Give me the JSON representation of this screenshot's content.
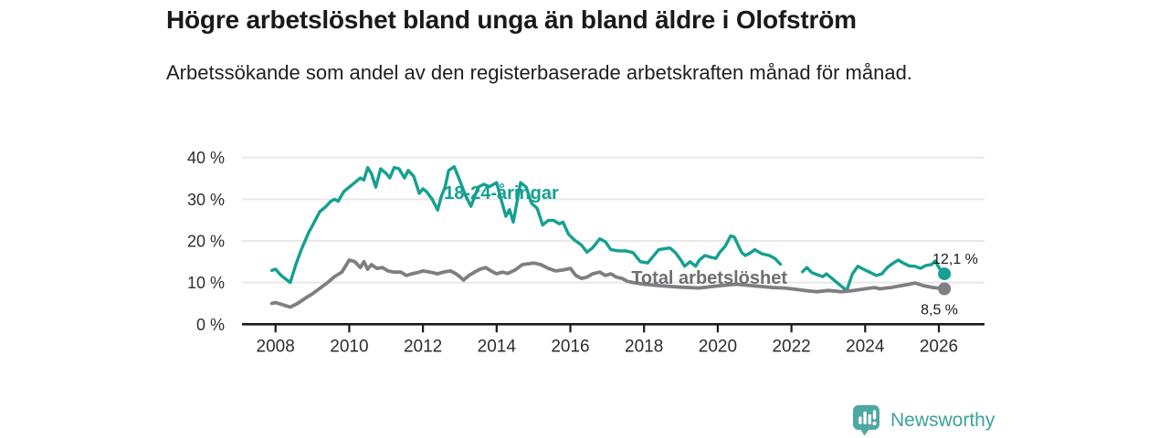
{
  "header": {
    "title": "Högre arbetslöshet bland unga än bland äldre i Olofström",
    "subtitle": "Arbetssökande som andel av den registerbaserade arbetskraften månad för månad."
  },
  "chart_data": {
    "type": "line",
    "title": "Högre arbetslöshet bland unga än bland äldre i Olofström",
    "xlabel": "",
    "ylabel": "",
    "xlim": [
      2007.8,
      2027.2
    ],
    "ylim": [
      0,
      40
    ],
    "grid": true,
    "legend_position": "inline-labels",
    "x_ticks": [
      {
        "value": 2008,
        "label": "2008"
      },
      {
        "value": 2010,
        "label": "2010"
      },
      {
        "value": 2012,
        "label": "2012"
      },
      {
        "value": 2014,
        "label": "2014"
      },
      {
        "value": 2016,
        "label": "2016"
      },
      {
        "value": 2018,
        "label": "2018"
      },
      {
        "value": 2020,
        "label": "2020"
      },
      {
        "value": 2022,
        "label": "2022"
      },
      {
        "value": 2024,
        "label": "2024"
      },
      {
        "value": 2026,
        "label": "2026"
      }
    ],
    "y_ticks": [
      {
        "value": 0,
        "label": "0 %"
      },
      {
        "value": 10,
        "label": "10 %"
      },
      {
        "value": 20,
        "label": "20 %"
      },
      {
        "value": 30,
        "label": "30 %"
      },
      {
        "value": 40,
        "label": "40 %"
      }
    ],
    "series": [
      {
        "id": "youth",
        "name": "18-24-åringar",
        "color": "#14a090",
        "label_color": "#14a090",
        "line_width": 3.4,
        "end_label": "12,1 %",
        "end_value": 12.1,
        "label_anchor": {
          "year": 2014.13,
          "value": 30.1
        },
        "points": [
          [
            2007.9,
            12.9
          ],
          [
            2008.0,
            13.2
          ],
          [
            2008.15,
            11.7
          ],
          [
            2008.4,
            10.0
          ],
          [
            2008.55,
            14.3
          ],
          [
            2008.7,
            17.9
          ],
          [
            2008.9,
            22.0
          ],
          [
            2009.05,
            24.5
          ],
          [
            2009.2,
            27.0
          ],
          [
            2009.35,
            28.1
          ],
          [
            2009.5,
            29.5
          ],
          [
            2009.6,
            30.0
          ],
          [
            2009.7,
            29.5
          ],
          [
            2009.85,
            31.8
          ],
          [
            2010.0,
            32.9
          ],
          [
            2010.15,
            34.0
          ],
          [
            2010.3,
            35.1
          ],
          [
            2010.4,
            34.6
          ],
          [
            2010.5,
            37.6
          ],
          [
            2010.6,
            36.2
          ],
          [
            2010.72,
            32.9
          ],
          [
            2010.85,
            37.3
          ],
          [
            2011.0,
            36.2
          ],
          [
            2011.1,
            35.1
          ],
          [
            2011.22,
            37.6
          ],
          [
            2011.35,
            37.3
          ],
          [
            2011.5,
            35.1
          ],
          [
            2011.6,
            36.9
          ],
          [
            2011.75,
            35.5
          ],
          [
            2011.9,
            31.4
          ],
          [
            2012.0,
            32.5
          ],
          [
            2012.1,
            31.8
          ],
          [
            2012.25,
            30.0
          ],
          [
            2012.4,
            27.4
          ],
          [
            2012.5,
            30.7
          ],
          [
            2012.6,
            32.9
          ],
          [
            2012.7,
            36.9
          ],
          [
            2012.85,
            37.8
          ],
          [
            2013.0,
            34.5
          ],
          [
            2013.15,
            31.0
          ],
          [
            2013.3,
            28.3
          ],
          [
            2013.5,
            32.9
          ],
          [
            2013.65,
            33.6
          ],
          [
            2013.8,
            33.0
          ],
          [
            2014.0,
            34.0
          ],
          [
            2014.12,
            30.0
          ],
          [
            2014.25,
            25.9
          ],
          [
            2014.35,
            27.5
          ],
          [
            2014.45,
            24.5
          ],
          [
            2014.65,
            34.0
          ],
          [
            2014.8,
            32.9
          ],
          [
            2014.95,
            29.0
          ],
          [
            2015.1,
            27.8
          ],
          [
            2015.25,
            23.8
          ],
          [
            2015.4,
            24.9
          ],
          [
            2015.55,
            24.9
          ],
          [
            2015.7,
            24.1
          ],
          [
            2015.8,
            24.5
          ],
          [
            2015.95,
            21.6
          ],
          [
            2016.1,
            20.3
          ],
          [
            2016.3,
            19.0
          ],
          [
            2016.45,
            17.3
          ],
          [
            2016.6,
            18.3
          ],
          [
            2016.8,
            20.5
          ],
          [
            2016.95,
            19.8
          ],
          [
            2017.1,
            17.9
          ],
          [
            2017.3,
            17.6
          ],
          [
            2017.5,
            17.6
          ],
          [
            2017.7,
            17.2
          ],
          [
            2017.9,
            15.0
          ],
          [
            2018.1,
            14.7
          ],
          [
            2018.4,
            17.9
          ],
          [
            2018.7,
            18.3
          ],
          [
            2018.85,
            17.2
          ],
          [
            2019.0,
            15.4
          ],
          [
            2019.1,
            13.9
          ],
          [
            2019.25,
            15.0
          ],
          [
            2019.4,
            13.9
          ],
          [
            2019.5,
            15.4
          ],
          [
            2019.65,
            16.5
          ],
          [
            2019.8,
            16.1
          ],
          [
            2019.95,
            15.8
          ],
          [
            2020.05,
            17.2
          ],
          [
            2020.2,
            18.7
          ],
          [
            2020.35,
            21.2
          ],
          [
            2020.45,
            20.9
          ],
          [
            2020.55,
            19.0
          ],
          [
            2020.65,
            17.2
          ],
          [
            2020.75,
            16.5
          ],
          [
            2020.9,
            17.2
          ],
          [
            2021.0,
            17.9
          ],
          [
            2021.2,
            16.9
          ],
          [
            2021.4,
            16.5
          ],
          [
            2021.55,
            15.8
          ],
          [
            2021.7,
            14.4
          ],
          [
            2022.0,
            null
          ],
          [
            2022.3,
            12.6
          ],
          [
            2022.42,
            13.6
          ],
          [
            2022.55,
            12.4
          ],
          [
            2022.7,
            11.9
          ],
          [
            2022.85,
            11.4
          ],
          [
            2022.95,
            12.1
          ],
          [
            2023.1,
            11.0
          ],
          [
            2023.3,
            9.5
          ],
          [
            2023.5,
            8.1
          ],
          [
            2023.65,
            12.0
          ],
          [
            2023.8,
            13.9
          ],
          [
            2023.95,
            13.2
          ],
          [
            2024.1,
            12.6
          ],
          [
            2024.3,
            11.7
          ],
          [
            2024.45,
            12.1
          ],
          [
            2024.6,
            13.6
          ],
          [
            2024.75,
            14.6
          ],
          [
            2024.9,
            15.4
          ],
          [
            2025.05,
            14.6
          ],
          [
            2025.2,
            14.0
          ],
          [
            2025.35,
            13.9
          ],
          [
            2025.5,
            13.4
          ],
          [
            2025.65,
            14.1
          ],
          [
            2025.8,
            14.3
          ],
          [
            2025.9,
            15.2
          ],
          [
            2026.0,
            13.6
          ],
          [
            2026.15,
            12.1
          ]
        ]
      },
      {
        "id": "total",
        "name": "Total arbetslöshet",
        "color": "#7e7e83",
        "label_color": "#6e6e73",
        "line_width": 3.8,
        "end_label": "8,5 %",
        "end_value": 8.5,
        "label_anchor": {
          "year": 2019.77,
          "value": 9.7
        },
        "points": [
          [
            2007.9,
            5.0
          ],
          [
            2008.0,
            5.2
          ],
          [
            2008.15,
            4.8
          ],
          [
            2008.4,
            4.1
          ],
          [
            2008.6,
            5.0
          ],
          [
            2008.8,
            6.2
          ],
          [
            2009.0,
            7.3
          ],
          [
            2009.2,
            8.6
          ],
          [
            2009.4,
            9.9
          ],
          [
            2009.6,
            11.4
          ],
          [
            2009.8,
            12.5
          ],
          [
            2010.0,
            15.4
          ],
          [
            2010.15,
            15.0
          ],
          [
            2010.3,
            13.6
          ],
          [
            2010.4,
            15.0
          ],
          [
            2010.5,
            13.2
          ],
          [
            2010.6,
            14.3
          ],
          [
            2010.75,
            13.4
          ],
          [
            2010.9,
            13.6
          ],
          [
            2011.05,
            12.8
          ],
          [
            2011.2,
            12.5
          ],
          [
            2011.4,
            12.5
          ],
          [
            2011.55,
            11.7
          ],
          [
            2011.7,
            12.1
          ],
          [
            2011.9,
            12.5
          ],
          [
            2012.0,
            12.8
          ],
          [
            2012.2,
            12.5
          ],
          [
            2012.4,
            12.1
          ],
          [
            2012.55,
            12.5
          ],
          [
            2012.75,
            12.8
          ],
          [
            2012.9,
            12.1
          ],
          [
            2013.0,
            11.4
          ],
          [
            2013.1,
            10.6
          ],
          [
            2013.25,
            11.7
          ],
          [
            2013.4,
            12.5
          ],
          [
            2013.55,
            13.2
          ],
          [
            2013.7,
            13.6
          ],
          [
            2013.85,
            12.8
          ],
          [
            2014.0,
            12.1
          ],
          [
            2014.15,
            12.5
          ],
          [
            2014.3,
            12.2
          ],
          [
            2014.5,
            13.0
          ],
          [
            2014.7,
            14.3
          ],
          [
            2014.85,
            14.5
          ],
          [
            2015.0,
            14.7
          ],
          [
            2015.2,
            14.3
          ],
          [
            2015.4,
            13.4
          ],
          [
            2015.6,
            12.8
          ],
          [
            2015.8,
            13.0
          ],
          [
            2016.0,
            13.4
          ],
          [
            2016.15,
            11.7
          ],
          [
            2016.3,
            11.0
          ],
          [
            2016.45,
            11.3
          ],
          [
            2016.6,
            12.1
          ],
          [
            2016.8,
            12.5
          ],
          [
            2016.95,
            11.7
          ],
          [
            2017.1,
            12.1
          ],
          [
            2017.25,
            11.3
          ],
          [
            2017.4,
            11.0
          ],
          [
            2017.55,
            10.3
          ],
          [
            2017.7,
            10.0
          ],
          [
            2018.0,
            9.6
          ],
          [
            2018.5,
            9.2
          ],
          [
            2019.0,
            8.9
          ],
          [
            2019.5,
            8.7
          ],
          [
            2020.0,
            9.2
          ],
          [
            2020.5,
            9.6
          ],
          [
            2021.0,
            9.2
          ],
          [
            2021.5,
            8.8
          ],
          [
            2021.8,
            8.7
          ],
          [
            2022.0,
            8.5
          ],
          [
            2022.35,
            8.1
          ],
          [
            2022.7,
            7.8
          ],
          [
            2023.0,
            8.1
          ],
          [
            2023.35,
            7.8
          ],
          [
            2023.7,
            8.1
          ],
          [
            2024.0,
            8.5
          ],
          [
            2024.25,
            8.8
          ],
          [
            2024.4,
            8.5
          ],
          [
            2024.7,
            8.8
          ],
          [
            2024.95,
            9.2
          ],
          [
            2025.2,
            9.6
          ],
          [
            2025.35,
            9.9
          ],
          [
            2025.6,
            9.2
          ],
          [
            2025.85,
            8.8
          ],
          [
            2026.15,
            8.5
          ]
        ]
      }
    ]
  },
  "footer": {
    "brand": "Newsworthy",
    "brand_color": "#3ba19c",
    "badge_color": "#4fa7a2"
  }
}
